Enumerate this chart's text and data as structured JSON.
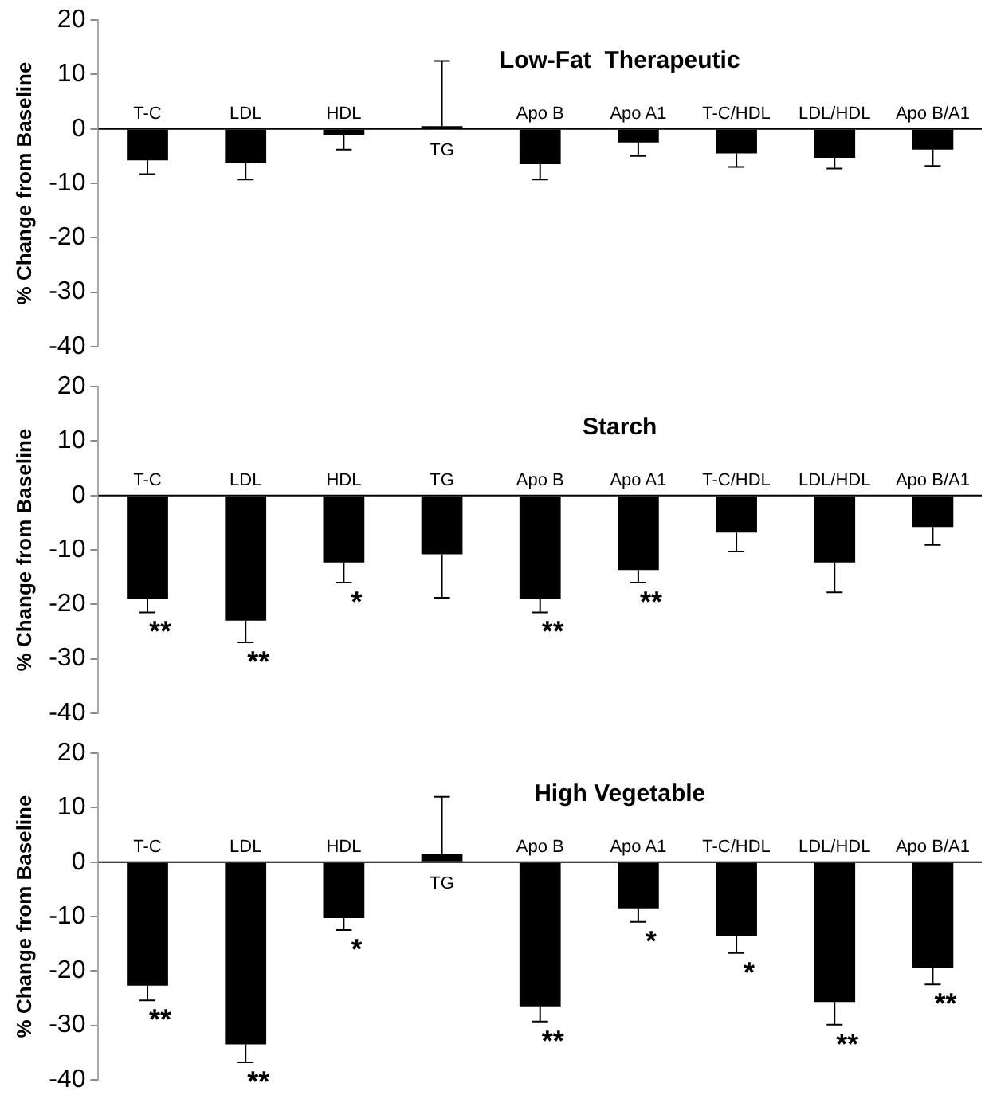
{
  "chart_data": [
    {
      "type": "bar",
      "title": "Low-Fat  Therapeutic",
      "ylabel": "% Change from Baseline",
      "categories": [
        "T-C",
        "LDL",
        "HDL",
        "TG",
        "Apo B",
        "Apo A1",
        "T-C/HDL",
        "LDL/HDL",
        "Apo B/A1"
      ],
      "color": "#000000",
      "values": [
        -5.8,
        -6.3,
        -1.2,
        0.5,
        -6.5,
        -2.5,
        -4.5,
        -5.3,
        -3.8
      ],
      "errors": [
        [
          -8.3,
          -5.8
        ],
        [
          -9.3,
          -6.3
        ],
        [
          -3.8,
          -1.2
        ],
        [
          0.5,
          12.5
        ],
        [
          -9.3,
          -6.5
        ],
        [
          -5,
          -2.5
        ],
        [
          -7,
          -4.5
        ],
        [
          -7.3,
          -5.3
        ],
        [
          -6.8,
          -3.8
        ]
      ],
      "ylim": [
        -40,
        20
      ],
      "yticks": [
        20,
        10,
        0,
        -10,
        -20,
        -30,
        -40
      ]
    },
    {
      "type": "bar",
      "title": "Starch",
      "ylabel": "% Change from Baseline",
      "categories": [
        "T-C",
        "LDL",
        "HDL",
        "TG",
        "Apo B",
        "Apo A1",
        "T-C/HDL",
        "LDL/HDL",
        "Apo B/A1"
      ],
      "color": "#000000",
      "values": [
        -19,
        -23,
        -12.3,
        -10.8,
        -19,
        -13.7,
        -6.8,
        -12.3,
        -5.8
      ],
      "errors": [
        [
          -21.5,
          -19
        ],
        [
          -27,
          -23
        ],
        [
          -16,
          -12.3
        ],
        [
          -18.8,
          -10.8
        ],
        [
          -21.5,
          -19
        ],
        [
          -16,
          -13.7
        ],
        [
          -10.3,
          -6.8
        ],
        [
          -17.8,
          -12.3
        ],
        [
          -9.1,
          -5.8
        ]
      ],
      "ylim": [
        -40,
        20
      ],
      "yticks": [
        20,
        10,
        0,
        -10,
        -20,
        -30,
        -40
      ],
      "annotations": [
        {
          "text": "**",
          "x": "T-C",
          "y": -19
        },
        {
          "text": "**",
          "x": "LDL",
          "y": -23
        },
        {
          "text": "*",
          "x": "HDL",
          "y": -12.3
        },
        {
          "text": "**",
          "x": "Apo B",
          "y": -19
        },
        {
          "text": "**",
          "x": "Apo A1",
          "y": -13.7
        }
      ]
    },
    {
      "type": "bar",
      "title": "High Vegetable",
      "ylabel": "% Change from Baseline",
      "categories": [
        "T-C",
        "LDL",
        "HDL",
        "TG",
        "Apo B",
        "Apo A1",
        "T-C/HDL",
        "LDL/HDL",
        "Apo B/A1"
      ],
      "color": "#000000",
      "values": [
        -22.7,
        -33.5,
        -10.3,
        1.5,
        -26.5,
        -8.5,
        -13.5,
        -25.7,
        -19.5
      ],
      "errors": [
        [
          -25.4,
          -22.7
        ],
        [
          -36.8,
          -33.5
        ],
        [
          -12.5,
          -10.3
        ],
        [
          1.5,
          12
        ],
        [
          -29.3,
          -26.5
        ],
        [
          -11,
          -8.5
        ],
        [
          -16.7,
          -13.5
        ],
        [
          -29.9,
          -25.7
        ],
        [
          -22.5,
          -19.5
        ]
      ],
      "ylim": [
        -40,
        20
      ],
      "yticks": [
        20,
        10,
        0,
        -10,
        -20,
        -30,
        -40
      ],
      "annotations": [
        {
          "text": "**",
          "x": "T-C",
          "y": -22.7
        },
        {
          "text": "**",
          "x": "LDL",
          "y": -33.5
        },
        {
          "text": "*",
          "x": "HDL",
          "y": -10.3
        },
        {
          "text": "**",
          "x": "Apo B",
          "y": -26.5
        },
        {
          "text": "*",
          "x": "Apo A1",
          "y": -8.5
        },
        {
          "text": "*",
          "x": "T-C/HDL",
          "y": -13.5
        },
        {
          "text": "**",
          "x": "LDL/HDL",
          "y": -25.7
        },
        {
          "text": "**",
          "x": "Apo B/A1",
          "y": -19.5
        }
      ]
    }
  ]
}
